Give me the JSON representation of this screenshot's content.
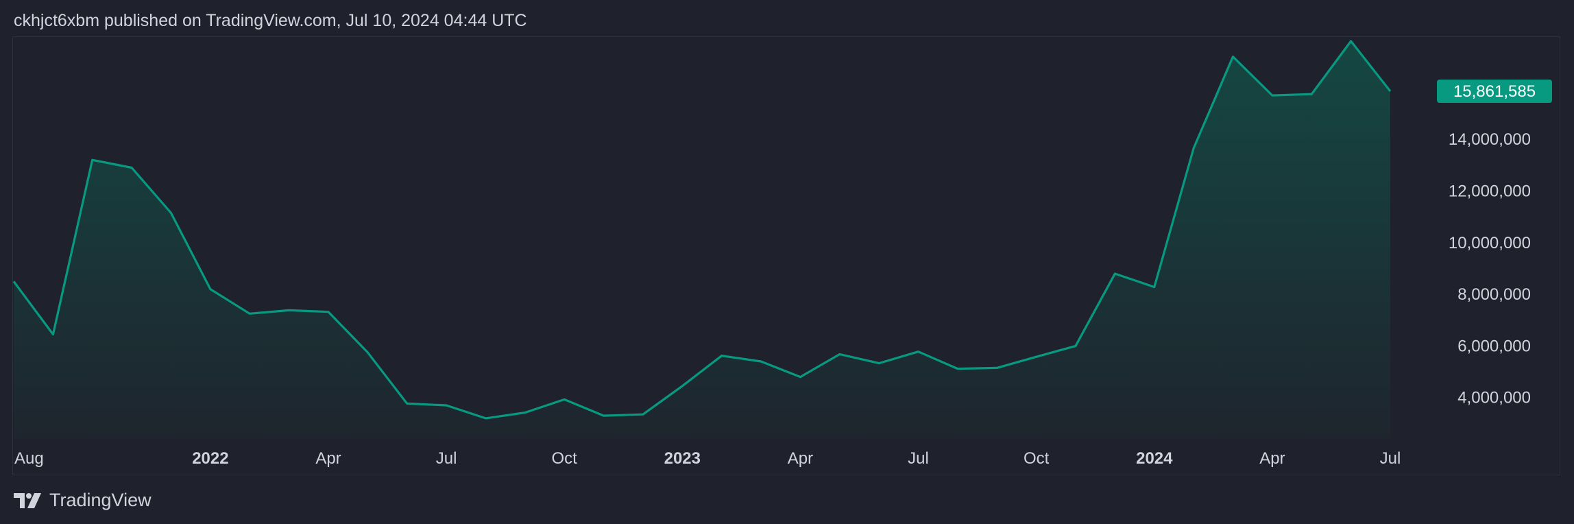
{
  "header": {
    "published_text": "ckhjct6xbm published on TradingView.com, Jul 10, 2024 04:44 UTC"
  },
  "footer": {
    "brand": "TradingView",
    "logo_icon": "tradingview-logo-icon"
  },
  "colors": {
    "background": "#1f222c",
    "line": "#089981",
    "fill_top": "#0f5b4f",
    "last_badge": "#089981",
    "text": "#d1d4dc"
  },
  "chart_data": {
    "type": "area",
    "x_tick_labels": [
      {
        "label": "Aug",
        "date": "2021-08",
        "bold": false
      },
      {
        "label": "2022",
        "date": "2022-01",
        "bold": true
      },
      {
        "label": "Apr",
        "date": "2022-04",
        "bold": false
      },
      {
        "label": "Jul",
        "date": "2022-07",
        "bold": false
      },
      {
        "label": "Oct",
        "date": "2022-10",
        "bold": false
      },
      {
        "label": "2023",
        "date": "2023-01",
        "bold": true
      },
      {
        "label": "Apr",
        "date": "2023-04",
        "bold": false
      },
      {
        "label": "Jul",
        "date": "2023-07",
        "bold": false
      },
      {
        "label": "Oct",
        "date": "2023-10",
        "bold": false
      },
      {
        "label": "2024",
        "date": "2024-01",
        "bold": true
      },
      {
        "label": "Apr",
        "date": "2024-04",
        "bold": false
      },
      {
        "label": "Jul",
        "date": "2024-07",
        "bold": false
      }
    ],
    "y_tick_labels": [
      "14,000,000",
      "12,000,000",
      "10,000,000",
      "8,000,000",
      "6,000,000",
      "4,000,000"
    ],
    "y_ticks": [
      14000000,
      12000000,
      10000000,
      8000000,
      6000000,
      4000000
    ],
    "ylim": [
      2400000,
      17800000
    ],
    "last_value_label": "15,861,585",
    "series": [
      {
        "points": [
          {
            "x": "2021-08",
            "y": 8500000
          },
          {
            "x": "2021-09",
            "y": 6450000
          },
          {
            "x": "2021-10",
            "y": 13200000
          },
          {
            "x": "2021-11",
            "y": 12900000
          },
          {
            "x": "2021-12",
            "y": 11150000
          },
          {
            "x": "2022-01",
            "y": 8200000
          },
          {
            "x": "2022-02",
            "y": 7250000
          },
          {
            "x": "2022-03",
            "y": 7380000
          },
          {
            "x": "2022-04",
            "y": 7320000
          },
          {
            "x": "2022-05",
            "y": 5750000
          },
          {
            "x": "2022-06",
            "y": 3770000
          },
          {
            "x": "2022-07",
            "y": 3700000
          },
          {
            "x": "2022-08",
            "y": 3200000
          },
          {
            "x": "2022-09",
            "y": 3420000
          },
          {
            "x": "2022-10",
            "y": 3930000
          },
          {
            "x": "2022-11",
            "y": 3300000
          },
          {
            "x": "2022-12",
            "y": 3350000
          },
          {
            "x": "2023-01",
            "y": 4450000
          },
          {
            "x": "2023-02",
            "y": 5620000
          },
          {
            "x": "2023-03",
            "y": 5400000
          },
          {
            "x": "2023-04",
            "y": 4800000
          },
          {
            "x": "2023-05",
            "y": 5680000
          },
          {
            "x": "2023-06",
            "y": 5330000
          },
          {
            "x": "2023-07",
            "y": 5780000
          },
          {
            "x": "2023-08",
            "y": 5120000
          },
          {
            "x": "2023-09",
            "y": 5150000
          },
          {
            "x": "2023-10",
            "y": 5580000
          },
          {
            "x": "2023-11",
            "y": 6000000
          },
          {
            "x": "2023-12",
            "y": 8800000
          },
          {
            "x": "2024-01",
            "y": 8280000
          },
          {
            "x": "2024-02",
            "y": 13650000
          },
          {
            "x": "2024-03",
            "y": 17200000
          },
          {
            "x": "2024-04",
            "y": 15700000
          },
          {
            "x": "2024-05",
            "y": 15750000
          },
          {
            "x": "2024-06",
            "y": 17800000
          },
          {
            "x": "2024-07",
            "y": 15861585
          }
        ]
      }
    ]
  }
}
